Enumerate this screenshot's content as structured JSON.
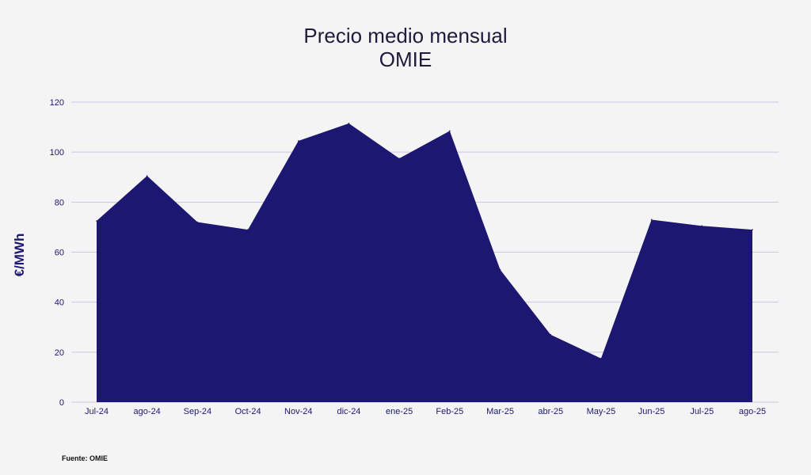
{
  "chart_data": {
    "type": "area",
    "title": "Precio medio mensual",
    "subtitle": "OMIE",
    "xlabel": "",
    "ylabel": "€/MWh",
    "categories": [
      "Jul-24",
      "ago-24",
      "Sep-24",
      "Oct-24",
      "Nov-24",
      "dic-24",
      "ene-25",
      "Feb-25",
      "Mar-25",
      "abr-25",
      "May-25",
      "Jun-25",
      "Jul-25",
      "ago-25"
    ],
    "values": [
      72.5,
      90.5,
      72,
      69,
      104.5,
      111.5,
      97.5,
      108.5,
      53,
      27,
      17.5,
      73,
      70.5,
      69
    ],
    "ylim": [
      0,
      120
    ],
    "yticks": [
      0,
      20,
      40,
      60,
      80,
      100,
      120
    ],
    "grid": true,
    "colors": {
      "area": "#1c1770",
      "grid": "#c9c7e4",
      "text": "#1c1770"
    }
  },
  "footer": {
    "source": "Fuente: OMIE"
  }
}
